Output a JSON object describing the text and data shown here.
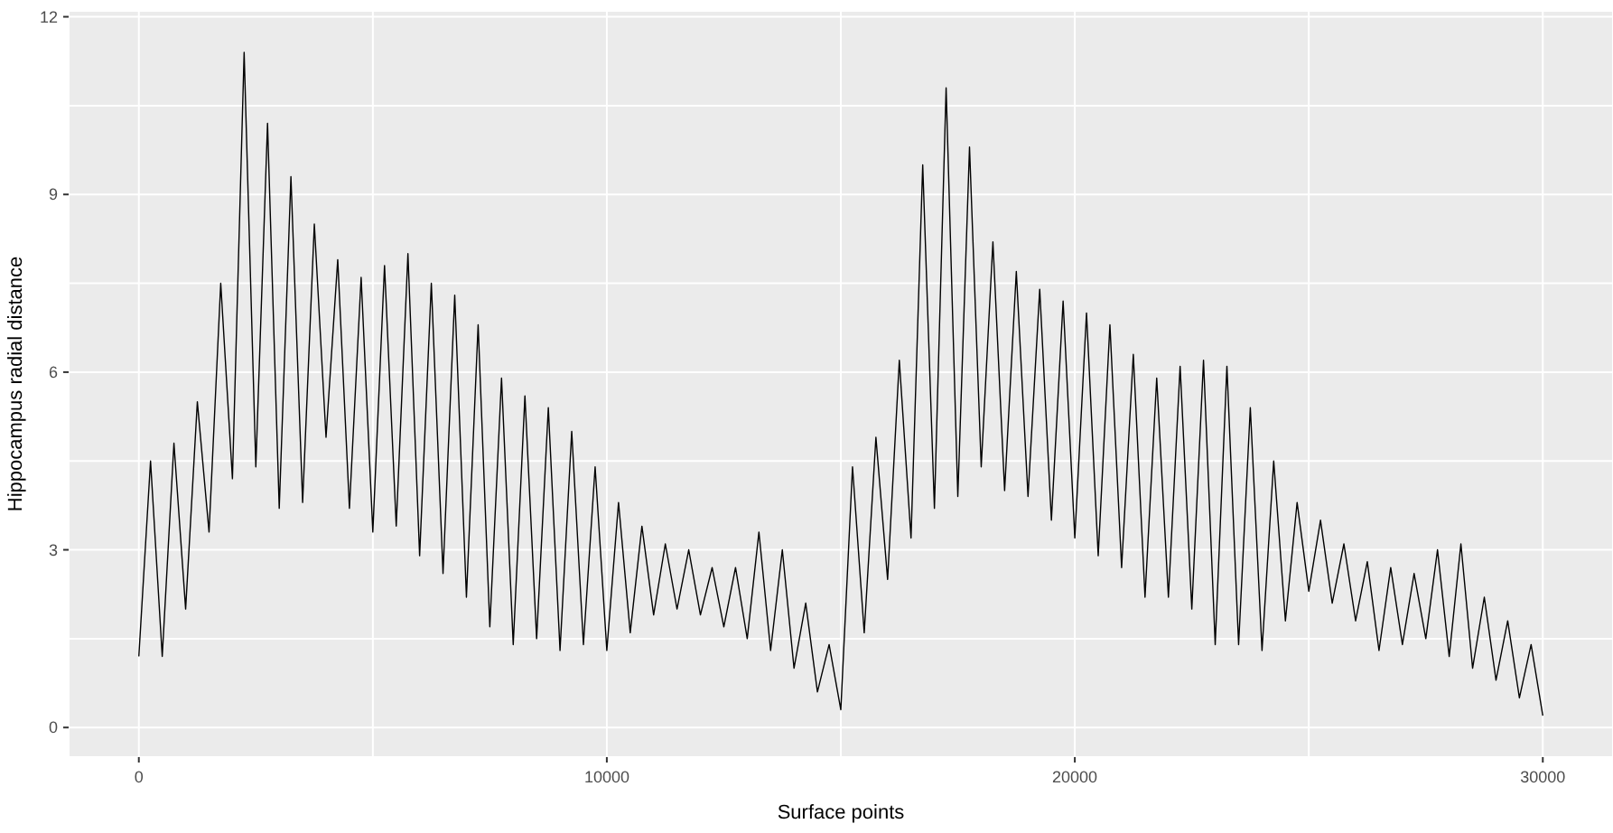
{
  "chart_data": {
    "type": "line",
    "xlabel": "Surface points",
    "ylabel": "Hippocampus radial distance",
    "x": [
      0,
      250,
      500,
      750,
      1000,
      1250,
      1500,
      1750,
      2000,
      2250,
      2500,
      2750,
      3000,
      3250,
      3500,
      3750,
      4000,
      4250,
      4500,
      4750,
      5000,
      5250,
      5500,
      5750,
      6000,
      6250,
      6500,
      6750,
      7000,
      7250,
      7500,
      7750,
      8000,
      8250,
      8500,
      8750,
      9000,
      9250,
      9500,
      9750,
      10000,
      10250,
      10500,
      10750,
      11000,
      11250,
      11500,
      11750,
      12000,
      12250,
      12500,
      12750,
      13000,
      13250,
      13500,
      13750,
      14000,
      14250,
      14500,
      14750,
      15000,
      15250,
      15500,
      15750,
      16000,
      16250,
      16500,
      16750,
      17000,
      17250,
      17500,
      17750,
      18000,
      18250,
      18500,
      18750,
      19000,
      19250,
      19500,
      19750,
      20000,
      20250,
      20500,
      20750,
      21000,
      21250,
      21500,
      21750,
      22000,
      22250,
      22500,
      22750,
      23000,
      23250,
      23500,
      23750,
      24000,
      24250,
      24500,
      24750,
      25000,
      25250,
      25500,
      25750,
      26000,
      26250,
      26500,
      26750,
      27000,
      27250,
      27500,
      27750,
      28000,
      28250,
      28500,
      28750,
      29000,
      29250,
      29500,
      29750,
      30000
    ],
    "series": [
      {
        "color": "#000000",
        "values": [
          1.2,
          4.5,
          1.2,
          4.8,
          2.0,
          5.5,
          3.3,
          7.5,
          4.2,
          11.4,
          4.4,
          10.2,
          3.7,
          9.3,
          3.8,
          8.5,
          4.9,
          7.9,
          3.7,
          7.6,
          3.3,
          7.8,
          3.4,
          8.0,
          2.9,
          7.5,
          2.6,
          7.3,
          2.2,
          6.8,
          1.7,
          5.9,
          1.4,
          5.6,
          1.5,
          5.4,
          1.3,
          5.0,
          1.4,
          4.4,
          1.3,
          3.8,
          1.6,
          3.4,
          1.9,
          3.1,
          2.0,
          3.0,
          1.9,
          2.7,
          1.7,
          2.7,
          1.5,
          3.3,
          1.3,
          3.0,
          1.0,
          2.1,
          0.6,
          1.4,
          0.3,
          4.4,
          1.6,
          4.9,
          2.5,
          6.2,
          3.2,
          9.5,
          3.7,
          10.8,
          3.9,
          9.8,
          4.4,
          8.2,
          4.0,
          7.7,
          3.9,
          7.4,
          3.5,
          7.2,
          3.2,
          7.0,
          2.9,
          6.8,
          2.7,
          6.3,
          2.2,
          5.9,
          2.2,
          6.1,
          2.0,
          6.2,
          1.4,
          6.1,
          1.4,
          5.4,
          1.3,
          4.5,
          1.8,
          3.8,
          2.3,
          3.5,
          2.1,
          3.1,
          1.8,
          2.8,
          1.3,
          2.7,
          1.4,
          2.6,
          1.5,
          3.0,
          1.2,
          3.1,
          1.0,
          2.2,
          0.8,
          1.8,
          0.5,
          1.4,
          0.2
        ]
      }
    ],
    "xlim": [
      -1500,
      31500
    ],
    "xticks": [
      0,
      {
        "value": 5000,
        "label": null
      },
      10000,
      {
        "value": 15000,
        "label": null
      },
      20000,
      {
        "value": 25000,
        "label": null
      },
      30000
    ],
    "ylim": [
      -0.5,
      12.1
    ],
    "yticks": [
      0,
      {
        "value": 1.5,
        "label": null
      },
      3,
      {
        "value": 4.5,
        "label": null
      },
      6,
      {
        "value": 7.5,
        "label": null
      },
      9,
      {
        "value": 10.5,
        "label": null
      },
      12
    ],
    "grid": true,
    "line_style": "solid",
    "marker": "none"
  }
}
